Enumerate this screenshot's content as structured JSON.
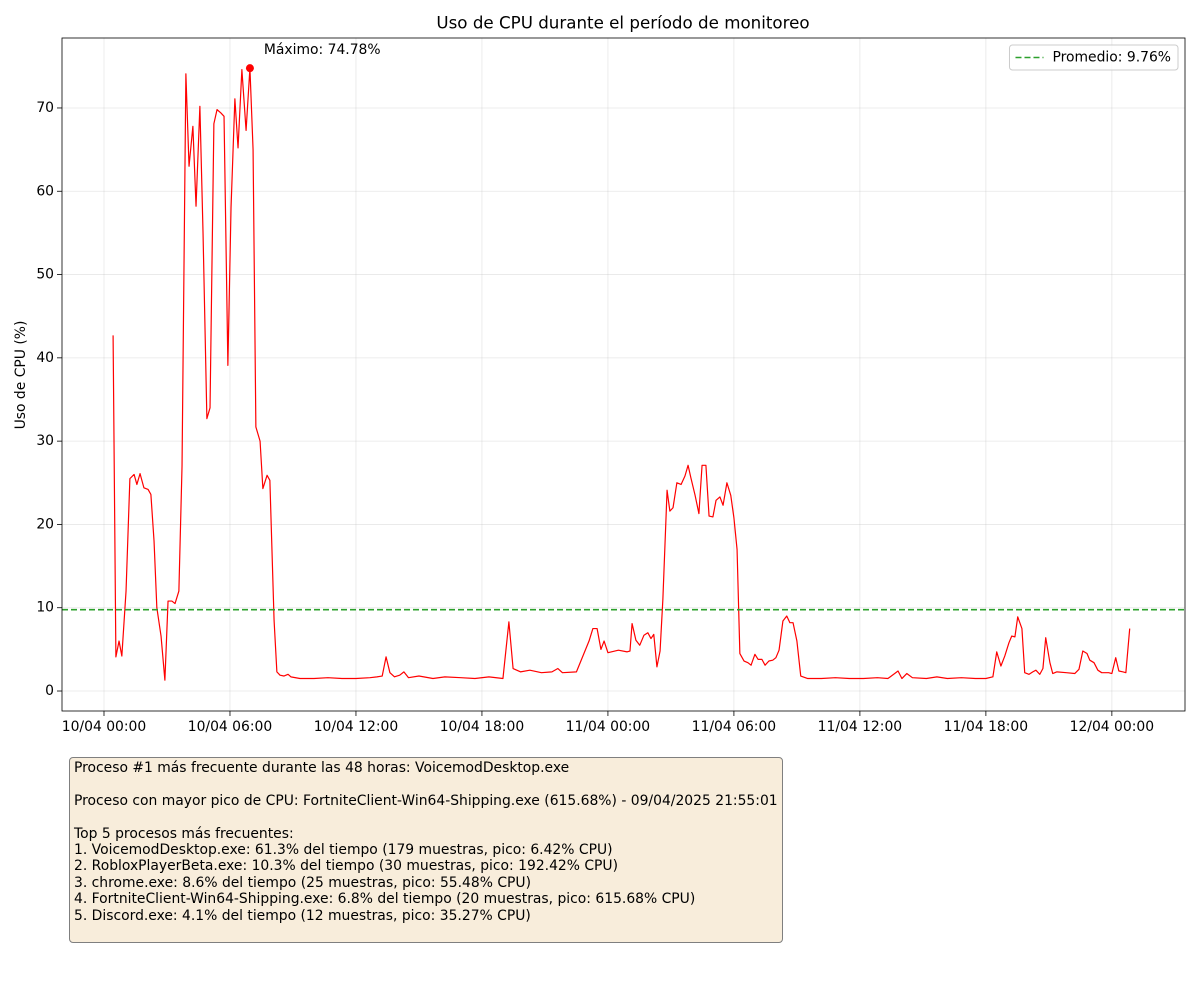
{
  "chart_data": {
    "type": "line",
    "title": "Uso de CPU durante el período de monitoreo",
    "y_label": "Uso de CPU (%)",
    "x": [
      "10/04 00:26",
      "10/04 00:34",
      "10/04 00:43",
      "10/04 00:51",
      "10/04 01:03",
      "10/04 01:14",
      "10/04 01:26",
      "10/04 01:34",
      "10/04 01:43",
      "10/04 01:54",
      "10/04 02:06",
      "10/04 02:14",
      "10/04 02:23",
      "10/04 02:31",
      "10/04 02:43",
      "10/04 02:54",
      "10/04 03:03",
      "10/04 03:14",
      "10/04 03:23",
      "10/04 03:34",
      "10/04 03:43",
      "10/04 03:54",
      "10/04 04:03",
      "10/04 04:14",
      "10/04 04:23",
      "10/04 04:34",
      "10/04 04:43",
      "10/04 04:54",
      "10/04 05:03",
      "10/04 05:14",
      "10/04 05:23",
      "10/04 05:34",
      "10/04 05:43",
      "10/04 05:54",
      "10/04 06:03",
      "10/04 06:14",
      "10/04 06:23",
      "10/04 06:34",
      "10/04 06:46",
      "10/04 06:57",
      "10/04 07:06",
      "10/04 07:14",
      "10/04 07:26",
      "10/04 07:34",
      "10/04 07:46",
      "10/04 07:54",
      "10/04 08:06",
      "10/04 08:14",
      "10/04 08:23",
      "10/04 08:34",
      "10/04 08:46",
      "10/04 08:54",
      "10/04 09:20",
      "10/04 10:00",
      "10/04 10:40",
      "10/04 11:20",
      "10/04 12:00",
      "10/04 12:40",
      "10/04 13:00",
      "10/04 13:15",
      "10/04 13:26",
      "10/04 13:37",
      "10/04 13:50",
      "10/04 14:05",
      "10/04 14:17",
      "10/04 14:30",
      "10/04 15:00",
      "10/04 15:40",
      "10/04 16:14",
      "10/04 17:00",
      "10/04 17:40",
      "10/04 18:20",
      "10/04 19:00",
      "10/04 19:17",
      "10/04 19:29",
      "10/04 19:50",
      "10/04 20:17",
      "10/04 20:50",
      "10/04 21:20",
      "10/04 21:37",
      "10/04 21:50",
      "10/04 22:30",
      "10/04 23:06",
      "10/04 23:17",
      "10/04 23:29",
      "10/04 23:40",
      "10/04 23:49",
      "11/04 00:00",
      "11/04 00:30",
      "11/04 00:55",
      "11/04 01:03",
      "11/04 01:09",
      "11/04 01:20",
      "11/04 01:31",
      "11/04 01:43",
      "11/04 01:54",
      "11/04 02:03",
      "11/04 02:11",
      "11/04 02:20",
      "11/04 02:29",
      "11/04 02:37",
      "11/04 02:49",
      "11/04 02:57",
      "11/04 03:06",
      "11/04 03:17",
      "11/04 03:29",
      "11/04 03:40",
      "11/04 03:49",
      "11/04 03:57",
      "11/04 04:09",
      "11/04 04:20",
      "11/04 04:29",
      "11/04 04:40",
      "11/04 04:49",
      "11/04 05:00",
      "11/04 05:09",
      "11/04 05:20",
      "11/04 05:29",
      "11/04 05:40",
      "11/04 05:51",
      "11/04 06:00",
      "11/04 06:09",
      "11/04 06:17",
      "11/04 06:29",
      "11/04 06:40",
      "11/04 06:49",
      "11/04 07:00",
      "11/04 07:09",
      "11/04 07:20",
      "11/04 07:29",
      "11/04 07:40",
      "11/04 07:51",
      "11/04 08:00",
      "11/04 08:09",
      "11/04 08:20",
      "11/04 08:31",
      "11/04 08:40",
      "11/04 08:49",
      "11/04 09:00",
      "11/04 09:11",
      "11/04 09:31",
      "11/04 10:10",
      "11/04 10:50",
      "11/04 11:30",
      "11/04 12:10",
      "11/04 12:50",
      "11/04 13:20",
      "11/04 13:49",
      "11/04 14:00",
      "11/04 14:14",
      "11/04 14:30",
      "11/04 15:10",
      "11/04 15:40",
      "11/04 16:10",
      "11/04 16:50",
      "11/04 17:30",
      "11/04 18:00",
      "11/04 18:20",
      "11/04 18:31",
      "11/04 18:43",
      "11/04 18:54",
      "11/04 19:06",
      "11/04 19:14",
      "11/04 19:23",
      "11/04 19:31",
      "11/04 19:43",
      "11/04 19:51",
      "11/04 20:03",
      "11/04 20:14",
      "11/04 20:23",
      "11/04 20:34",
      "11/04 20:43",
      "11/04 20:51",
      "11/04 21:03",
      "11/04 21:11",
      "11/04 21:23",
      "11/04 21:50",
      "11/04 22:14",
      "11/04 22:26",
      "11/04 22:37",
      "11/04 22:49",
      "11/04 22:57",
      "11/04 23:09",
      "11/04 23:20",
      "11/04 23:31",
      "11/04 23:51",
      "12/04 00:00",
      "12/04 00:11",
      "12/04 00:20",
      "12/04 00:31",
      "12/04 00:40",
      "12/04 00:51"
    ],
    "series": [
      {
        "name": "Uso de CPU",
        "color": "#ff0000",
        "values": [
          42.7,
          4.1,
          6.0,
          4.2,
          12.0,
          25.5,
          26.0,
          24.8,
          26.1,
          24.4,
          24.2,
          23.6,
          18.0,
          10.0,
          6.6,
          1.3,
          10.8,
          10.8,
          10.5,
          12.0,
          27.0,
          74.1,
          63.0,
          67.8,
          58.2,
          70.2,
          55.0,
          32.7,
          34.0,
          68.1,
          69.8,
          69.4,
          69.0,
          39.1,
          58.0,
          71.1,
          65.2,
          74.6,
          67.3,
          74.78,
          65.0,
          31.7,
          30.0,
          24.3,
          25.9,
          25.3,
          8.5,
          2.3,
          1.9,
          1.8,
          2.0,
          1.7,
          1.5,
          1.5,
          1.6,
          1.5,
          1.5,
          1.6,
          1.7,
          1.8,
          4.1,
          2.2,
          1.7,
          1.9,
          2.3,
          1.6,
          1.8,
          1.5,
          1.7,
          1.6,
          1.5,
          1.7,
          1.5,
          8.3,
          2.7,
          2.3,
          2.5,
          2.2,
          2.3,
          2.7,
          2.2,
          2.3,
          6.0,
          7.5,
          7.5,
          5.0,
          6.0,
          4.6,
          4.9,
          4.7,
          4.8,
          8.1,
          6.1,
          5.5,
          6.7,
          7.0,
          6.3,
          6.8,
          2.9,
          4.8,
          11.0,
          24.1,
          21.6,
          22.0,
          25.0,
          24.8,
          25.8,
          27.1,
          25.6,
          23.5,
          21.3,
          27.1,
          27.1,
          21.0,
          20.9,
          22.9,
          23.3,
          22.3,
          25.0,
          23.5,
          20.8,
          17.0,
          4.5,
          3.6,
          3.4,
          3.1,
          4.4,
          3.8,
          3.8,
          3.1,
          3.6,
          3.7,
          4.0,
          4.9,
          8.4,
          9.0,
          8.2,
          8.2,
          6.0,
          1.8,
          1.5,
          1.5,
          1.6,
          1.5,
          1.5,
          1.6,
          1.5,
          2.4,
          1.5,
          2.1,
          1.6,
          1.5,
          1.7,
          1.5,
          1.6,
          1.5,
          1.5,
          1.7,
          4.7,
          3.0,
          4.2,
          5.8,
          6.6,
          6.5,
          8.9,
          7.5,
          2.2,
          2.0,
          2.3,
          2.5,
          2.0,
          2.7,
          6.4,
          3.4,
          2.1,
          2.3,
          2.2,
          2.1,
          2.6,
          4.8,
          4.5,
          3.7,
          3.4,
          2.5,
          2.2,
          2.2,
          2.1,
          4.0,
          2.4,
          2.3,
          2.2,
          7.5
        ]
      }
    ],
    "xlim": [
      "09/04 22:00",
      "12/04 03:29"
    ],
    "xticks": [
      "10/04 00:00",
      "10/04 06:00",
      "10/04 12:00",
      "10/04 18:00",
      "11/04 00:00",
      "11/04 06:00",
      "11/04 12:00",
      "11/04 18:00",
      "12/04 00:00"
    ],
    "ylim": [
      -2.4,
      78.4
    ],
    "yticks": [
      0,
      10,
      20,
      30,
      40,
      50,
      60,
      70
    ],
    "grid": true,
    "average": {
      "value": 9.76,
      "label": "Promedio: 9.76%",
      "color": "#2ca02c"
    },
    "max_annotation": {
      "label": "Máximo: 74.78%"
    },
    "legend": "upper right"
  },
  "info_box": {
    "groups": [
      [
        "Proceso #1 más frecuente durante las 48 horas: VoicemodDesktop.exe"
      ],
      [
        "Proceso con mayor pico de CPU: FortniteClient-Win64-Shipping.exe (615.68%) - 09/04/2025 21:55:01"
      ],
      [
        "Top 5 procesos más frecuentes:",
        "1. VoicemodDesktop.exe: 61.3% del tiempo (179 muestras, pico: 6.42% CPU)",
        "2. RobloxPlayerBeta.exe: 10.3% del tiempo (30 muestras, pico: 192.42% CPU)",
        "3. chrome.exe: 8.6% del tiempo (25 muestras, pico: 55.48% CPU)",
        "4. FortniteClient-Win64-Shipping.exe: 6.8% del tiempo (20 muestras, pico: 615.68% CPU)",
        "5. Discord.exe: 4.1% del tiempo (12 muestras, pico: 35.27% CPU)"
      ]
    ]
  }
}
